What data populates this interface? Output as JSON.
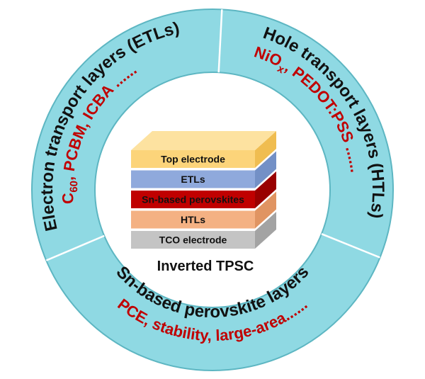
{
  "diagram": {
    "segments": [
      {
        "title": "Electron transport layers (ETLs)",
        "subtitle": [
          "C",
          "60",
          ", PCBM, ICBA ......"
        ]
      },
      {
        "title": "Hole transport layers (HTLs)",
        "subtitle": [
          "NiO",
          "x",
          ", PEDOT:PSS ......"
        ]
      },
      {
        "title": "Sn-based perovskite layers",
        "subtitle": [
          "PCE, stability, large-area......"
        ]
      }
    ],
    "stack": {
      "layers": [
        "Top electrode",
        "ETLs",
        "Sn-based perovskites",
        "HTLs",
        "TCO electrode"
      ],
      "caption": "Inverted TPSC"
    }
  }
}
